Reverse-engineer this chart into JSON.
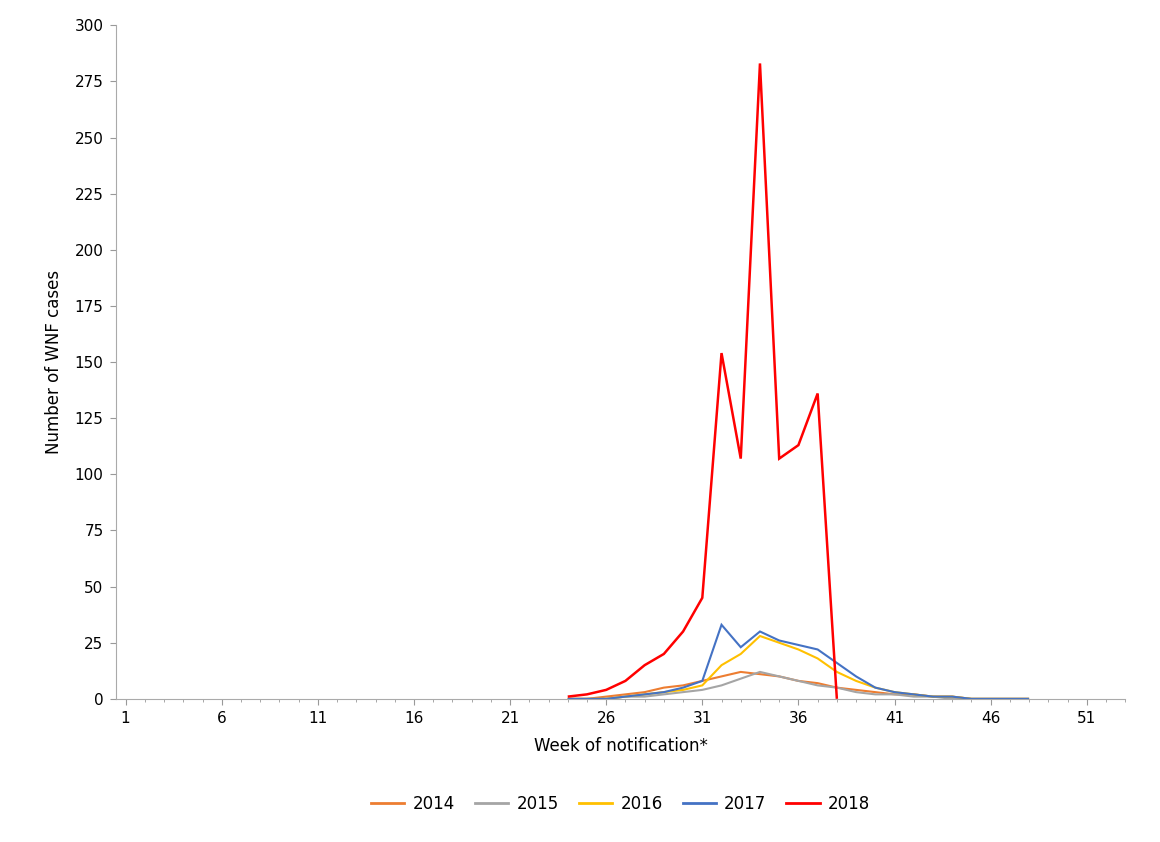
{
  "title": "",
  "xlabel": "Week of notification*",
  "ylabel": "Number of WNF cases",
  "xlim_min": 0.5,
  "xlim_max": 53,
  "ylim": [
    0,
    300
  ],
  "xticks": [
    1,
    6,
    11,
    16,
    21,
    26,
    31,
    36,
    41,
    46,
    51
  ],
  "yticks": [
    0,
    25,
    50,
    75,
    100,
    125,
    150,
    175,
    200,
    225,
    250,
    275,
    300
  ],
  "series": {
    "2014": {
      "color": "#ED7D31",
      "linewidth": 1.5,
      "weeks": [
        24,
        25,
        26,
        27,
        28,
        29,
        30,
        31,
        32,
        33,
        34,
        35,
        36,
        37,
        38,
        39,
        40,
        41,
        42,
        43,
        44,
        45,
        46,
        47,
        48
      ],
      "values": [
        0,
        0,
        1,
        2,
        3,
        5,
        6,
        8,
        10,
        12,
        11,
        10,
        8,
        7,
        5,
        4,
        3,
        2,
        2,
        1,
        1,
        0,
        0,
        0,
        0
      ]
    },
    "2015": {
      "color": "#A5A5A5",
      "linewidth": 1.5,
      "weeks": [
        24,
        25,
        26,
        27,
        28,
        29,
        30,
        31,
        32,
        33,
        34,
        35,
        36,
        37,
        38,
        39,
        40,
        41,
        42,
        43,
        44,
        45,
        46,
        47,
        48
      ],
      "values": [
        0,
        0,
        0,
        1,
        1,
        2,
        3,
        4,
        6,
        9,
        12,
        10,
        8,
        6,
        5,
        3,
        2,
        2,
        1,
        1,
        0,
        0,
        0,
        0,
        0
      ]
    },
    "2016": {
      "color": "#FFC000",
      "linewidth": 1.5,
      "weeks": [
        24,
        25,
        26,
        27,
        28,
        29,
        30,
        31,
        32,
        33,
        34,
        35,
        36,
        37,
        38,
        39,
        40,
        41,
        42,
        43,
        44,
        45,
        46,
        47,
        48
      ],
      "values": [
        0,
        0,
        0,
        1,
        2,
        3,
        4,
        6,
        15,
        20,
        28,
        25,
        22,
        18,
        12,
        8,
        5,
        3,
        2,
        1,
        1,
        0,
        0,
        0,
        0
      ]
    },
    "2017": {
      "color": "#4472C4",
      "linewidth": 1.5,
      "weeks": [
        24,
        25,
        26,
        27,
        28,
        29,
        30,
        31,
        32,
        33,
        34,
        35,
        36,
        37,
        38,
        39,
        40,
        41,
        42,
        43,
        44,
        45,
        46,
        47,
        48
      ],
      "values": [
        0,
        0,
        0,
        1,
        2,
        3,
        5,
        8,
        33,
        23,
        30,
        26,
        24,
        22,
        16,
        10,
        5,
        3,
        2,
        1,
        1,
        0,
        0,
        0,
        0
      ]
    },
    "2018": {
      "color": "#FF0000",
      "linewidth": 1.8,
      "weeks": [
        24,
        25,
        26,
        27,
        28,
        29,
        30,
        31,
        32,
        33,
        34,
        35,
        36,
        37,
        38
      ],
      "values": [
        1,
        2,
        4,
        8,
        15,
        20,
        30,
        45,
        154,
        107,
        283,
        107,
        113,
        136,
        0
      ]
    }
  },
  "legend_labels": [
    "2014",
    "2015",
    "2016",
    "2017",
    "2018"
  ],
  "legend_colors": [
    "#ED7D31",
    "#A5A5A5",
    "#FFC000",
    "#4472C4",
    "#FF0000"
  ],
  "background_color": "#FFFFFF"
}
